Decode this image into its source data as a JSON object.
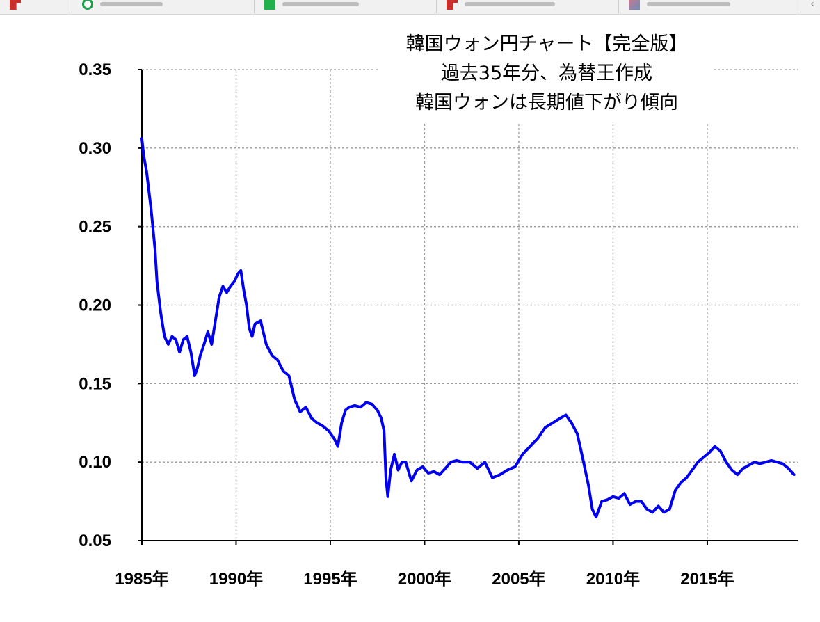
{
  "chart_data": {
    "type": "line",
    "title": [
      "韓国ウォン円チャート【完全版】",
      "過去35年分、為替王作成",
      "韓国ウォンは長期値下がり傾向"
    ],
    "xlabel": "",
    "ylabel": "",
    "xlim": [
      1985.0,
      2019.8
    ],
    "ylim": [
      0.05,
      0.35
    ],
    "x_ticks": [
      1985,
      1990,
      1995,
      2000,
      2005,
      2010,
      2015
    ],
    "x_tick_labels": [
      "1985年",
      "1990年",
      "1995年",
      "2000年",
      "2005年",
      "2010年",
      "2015年"
    ],
    "y_ticks": [
      0.05,
      0.1,
      0.15,
      0.2,
      0.25,
      0.3,
      0.35
    ],
    "y_tick_labels": [
      "0.05",
      "0.10",
      "0.15",
      "0.20",
      "0.25",
      "0.30",
      "0.35"
    ],
    "grid": true,
    "series": [
      {
        "color": "#0000ee",
        "x": [
          1985.0,
          1985.1,
          1985.25,
          1985.5,
          1985.7,
          1985.8,
          1986.0,
          1986.2,
          1986.4,
          1986.6,
          1986.8,
          1987.0,
          1987.2,
          1987.4,
          1987.6,
          1987.8,
          1987.95,
          1988.1,
          1988.3,
          1988.5,
          1988.7,
          1988.9,
          1989.1,
          1989.3,
          1989.5,
          1989.7,
          1989.9,
          1990.1,
          1990.25,
          1990.4,
          1990.55,
          1990.7,
          1990.85,
          1991.0,
          1991.3,
          1991.6,
          1991.9,
          1992.2,
          1992.5,
          1992.8,
          1993.1,
          1993.4,
          1993.7,
          1994.0,
          1994.3,
          1994.6,
          1994.9,
          1995.2,
          1995.4,
          1995.6,
          1995.8,
          1996.0,
          1996.3,
          1996.6,
          1996.9,
          1997.2,
          1997.5,
          1997.7,
          1997.85,
          1997.95,
          1998.05,
          1998.2,
          1998.4,
          1998.6,
          1998.8,
          1999.0,
          1999.3,
          1999.6,
          1999.9,
          2000.2,
          2000.5,
          2000.8,
          2001.1,
          2001.4,
          2001.7,
          2002.0,
          2002.4,
          2002.8,
          2003.2,
          2003.6,
          2004.0,
          2004.4,
          2004.8,
          2005.2,
          2005.6,
          2006.0,
          2006.4,
          2006.8,
          2007.2,
          2007.5,
          2007.8,
          2008.1,
          2008.4,
          2008.7,
          2008.9,
          2009.1,
          2009.4,
          2009.7,
          2010.0,
          2010.3,
          2010.6,
          2010.9,
          2011.2,
          2011.5,
          2011.8,
          2012.1,
          2012.4,
          2012.7,
          2013.0,
          2013.3,
          2013.6,
          2013.9,
          2014.2,
          2014.5,
          2014.8,
          2015.1,
          2015.4,
          2015.7,
          2016.0,
          2016.3,
          2016.6,
          2016.9,
          2017.2,
          2017.5,
          2017.8,
          2018.1,
          2018.4,
          2018.7,
          2019.0,
          2019.3,
          2019.6
        ],
        "values": [
          0.306,
          0.295,
          0.285,
          0.26,
          0.235,
          0.215,
          0.195,
          0.18,
          0.175,
          0.18,
          0.178,
          0.17,
          0.178,
          0.18,
          0.17,
          0.155,
          0.16,
          0.168,
          0.175,
          0.183,
          0.175,
          0.19,
          0.205,
          0.212,
          0.208,
          0.212,
          0.215,
          0.22,
          0.222,
          0.21,
          0.2,
          0.185,
          0.18,
          0.188,
          0.19,
          0.175,
          0.168,
          0.165,
          0.158,
          0.155,
          0.14,
          0.132,
          0.135,
          0.128,
          0.125,
          0.123,
          0.12,
          0.115,
          0.11,
          0.125,
          0.133,
          0.135,
          0.136,
          0.135,
          0.138,
          0.137,
          0.133,
          0.128,
          0.12,
          0.09,
          0.078,
          0.095,
          0.105,
          0.095,
          0.1,
          0.1,
          0.088,
          0.095,
          0.097,
          0.093,
          0.094,
          0.092,
          0.096,
          0.1,
          0.101,
          0.1,
          0.1,
          0.096,
          0.1,
          0.09,
          0.092,
          0.095,
          0.097,
          0.105,
          0.11,
          0.115,
          0.122,
          0.125,
          0.128,
          0.13,
          0.125,
          0.118,
          0.102,
          0.085,
          0.07,
          0.065,
          0.075,
          0.076,
          0.078,
          0.077,
          0.08,
          0.073,
          0.075,
          0.075,
          0.07,
          0.068,
          0.072,
          0.068,
          0.07,
          0.082,
          0.087,
          0.09,
          0.095,
          0.1,
          0.103,
          0.106,
          0.11,
          0.107,
          0.1,
          0.095,
          0.092,
          0.096,
          0.098,
          0.1,
          0.099,
          0.1,
          0.101,
          0.1,
          0.099,
          0.096,
          0.092
        ]
      }
    ]
  }
}
